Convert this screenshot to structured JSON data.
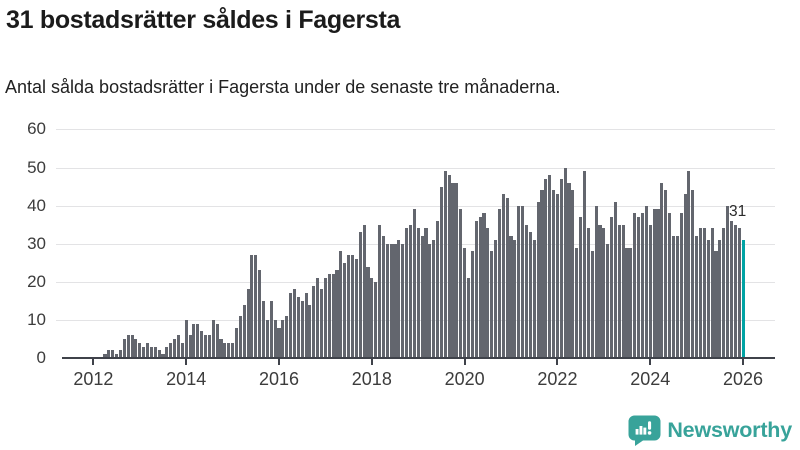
{
  "header": {
    "title": "31 bostadsrätter såldes i Fagersta",
    "subtitle": "Antal sålda bostadsrätter i Fagersta under de senaste tre månaderna."
  },
  "chart_data": {
    "type": "bar",
    "title": "31 bostadsrätter såldes i Fagersta",
    "xlabel": "",
    "ylabel": "",
    "ylim": [
      0,
      60
    ],
    "y_ticks": [
      0,
      10,
      20,
      30,
      40,
      50,
      60
    ],
    "x_tick_labels": [
      "2012",
      "2014",
      "2016",
      "2018",
      "2020",
      "2022",
      "2024",
      "2026"
    ],
    "x_tick_interval_months": 24,
    "start_month": "2012-01",
    "end_month": "2026-01",
    "grid": true,
    "legend": false,
    "bar_color": "#63666e",
    "highlight_color": "#00a3a4",
    "highlight_index": 168,
    "annotation": {
      "text": "31",
      "value": 31
    },
    "values": [
      0,
      0,
      0,
      1,
      2,
      2,
      1,
      2,
      5,
      6,
      6,
      5,
      4,
      3,
      4,
      3,
      3,
      2,
      1,
      3,
      4,
      5,
      6,
      4,
      10,
      6,
      9,
      9,
      7,
      6,
      6,
      10,
      9,
      5,
      4,
      4,
      4,
      8,
      11,
      14,
      18,
      27,
      27,
      23,
      15,
      10,
      15,
      10,
      8,
      10,
      11,
      17,
      18,
      16,
      15,
      17,
      14,
      19,
      21,
      18,
      21,
      22,
      22,
      23,
      28,
      25,
      27,
      27,
      26,
      33,
      35,
      24,
      21,
      20,
      35,
      32,
      30,
      30,
      30,
      31,
      30,
      34,
      35,
      39,
      34,
      32,
      34,
      30,
      31,
      36,
      45,
      49,
      48,
      46,
      46,
      39,
      29,
      21,
      28,
      36,
      37,
      38,
      34,
      28,
      31,
      39,
      43,
      42,
      32,
      31,
      40,
      40,
      35,
      33,
      31,
      41,
      44,
      47,
      48,
      44,
      43,
      47,
      50,
      46,
      44,
      29,
      37,
      49,
      34,
      28,
      40,
      35,
      34,
      30,
      37,
      41,
      35,
      35,
      29,
      29,
      38,
      37,
      38,
      40,
      35,
      39,
      39,
      46,
      44,
      38,
      32,
      32,
      38,
      43,
      49,
      44,
      32,
      34,
      34,
      31,
      34,
      28,
      31,
      34,
      40,
      36,
      35,
      34,
      31
    ]
  },
  "footer": {
    "brand_label": "Newsworthy",
    "brand_color": "#38a39a",
    "logo_icon": "newsworthy-speech-bubble-chart-icon"
  }
}
